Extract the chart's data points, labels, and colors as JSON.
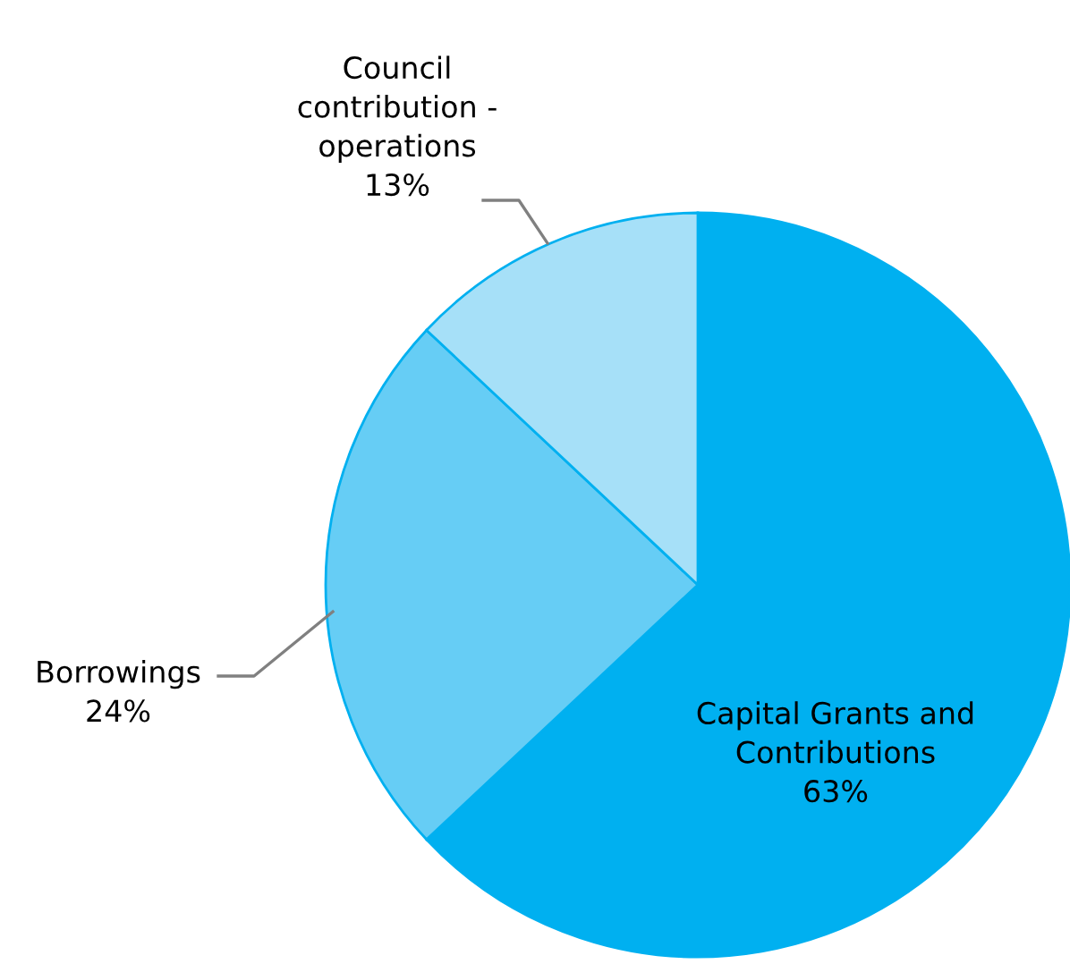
{
  "chart_data": {
    "type": "pie",
    "categories": [
      "Capital Grants and\nContributions",
      "Borrowings",
      "Council\ncontribution -\noperations"
    ],
    "values": [
      63,
      24,
      13
    ],
    "colors": [
      "#00b0f0",
      "#66cdf5",
      "#a6e0f8"
    ],
    "value_labels": [
      "63%",
      "24%",
      "13%"
    ]
  }
}
